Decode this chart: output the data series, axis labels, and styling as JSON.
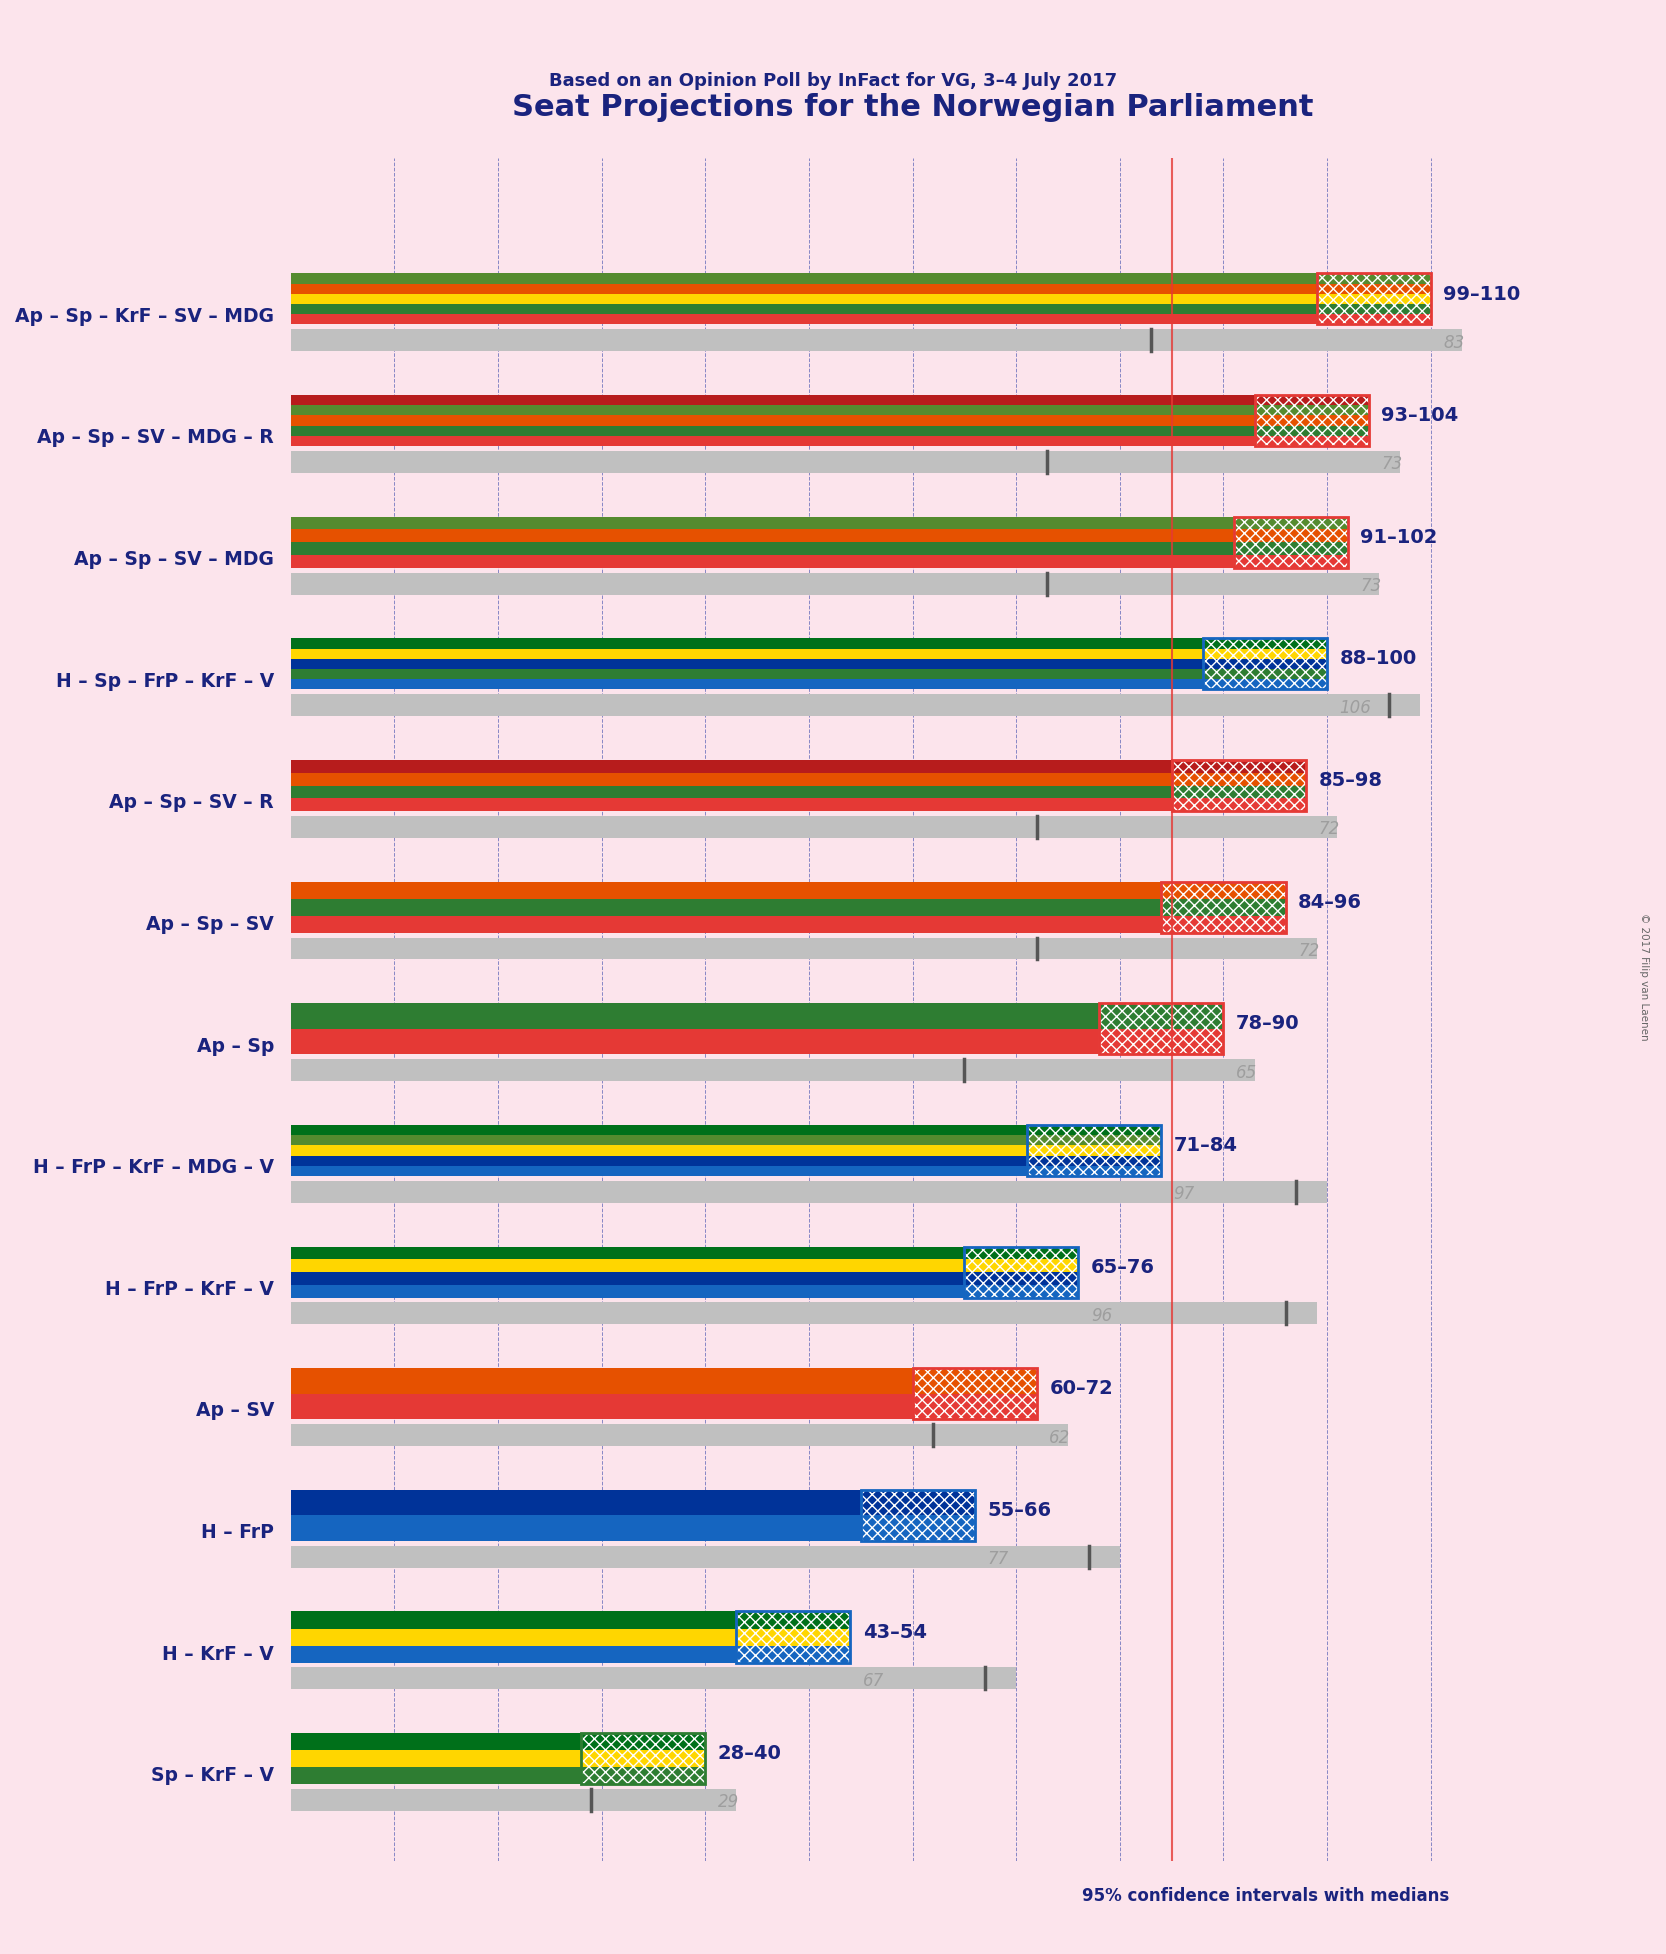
{
  "title": "Seat Projections for the Norwegian Parliament",
  "subtitle": "Based on an Opinion Poll by InFact for VG, 3–4 July 2017",
  "footnote": "95% confidence intervals with medians",
  "copyright": "© 2017 Filip van Laenen",
  "background_color": "#fce4ec",
  "title_color": "#1a237e",
  "subtitle_color": "#1a237e",
  "label_color": "#1a237e",
  "range_color": "#1a237e",
  "median_color": "#9e9e9e",
  "majority_line": 85,
  "x_max": 120,
  "coalitions": [
    {
      "name": "Ap – Sp – KrF – SV – MDG",
      "low": 99,
      "high": 110,
      "median": 83,
      "colors": [
        "#e53935",
        "#2e7d32",
        "#ffd600",
        "#e65100",
        "#558b2f"
      ]
    },
    {
      "name": "Ap – Sp – SV – MDG – R",
      "low": 93,
      "high": 104,
      "median": 73,
      "colors": [
        "#e53935",
        "#2e7d32",
        "#e65100",
        "#558b2f",
        "#b71c1c"
      ]
    },
    {
      "name": "Ap – Sp – SV – MDG",
      "low": 91,
      "high": 102,
      "median": 73,
      "colors": [
        "#e53935",
        "#2e7d32",
        "#e65100",
        "#558b2f"
      ]
    },
    {
      "name": "H – Sp – FrP – KrF – V",
      "low": 88,
      "high": 100,
      "median": 106,
      "colors": [
        "#1565c0",
        "#2e7d32",
        "#003399",
        "#ffd600",
        "#00701a"
      ]
    },
    {
      "name": "Ap – Sp – SV – R",
      "low": 85,
      "high": 98,
      "median": 72,
      "colors": [
        "#e53935",
        "#2e7d32",
        "#e65100",
        "#b71c1c"
      ]
    },
    {
      "name": "Ap – Sp – SV",
      "low": 84,
      "high": 96,
      "median": 72,
      "colors": [
        "#e53935",
        "#2e7d32",
        "#e65100"
      ]
    },
    {
      "name": "Ap – Sp",
      "low": 78,
      "high": 90,
      "median": 65,
      "colors": [
        "#e53935",
        "#2e7d32"
      ]
    },
    {
      "name": "H – FrP – KrF – MDG – V",
      "low": 71,
      "high": 84,
      "median": 97,
      "colors": [
        "#1565c0",
        "#003399",
        "#ffd600",
        "#558b2f",
        "#00701a"
      ]
    },
    {
      "name": "H – FrP – KrF – V",
      "low": 65,
      "high": 76,
      "median": 96,
      "colors": [
        "#1565c0",
        "#003399",
        "#ffd600",
        "#00701a"
      ]
    },
    {
      "name": "Ap – SV",
      "low": 60,
      "high": 72,
      "median": 62,
      "colors": [
        "#e53935",
        "#e65100"
      ]
    },
    {
      "name": "H – FrP",
      "low": 55,
      "high": 66,
      "median": 77,
      "colors": [
        "#1565c0",
        "#003399"
      ]
    },
    {
      "name": "H – KrF – V",
      "low": 43,
      "high": 54,
      "median": 67,
      "colors": [
        "#1565c0",
        "#ffd600",
        "#00701a"
      ]
    },
    {
      "name": "Sp – KrF – V",
      "low": 28,
      "high": 40,
      "median": 29,
      "colors": [
        "#2e7d32",
        "#ffd600",
        "#00701a"
      ]
    }
  ]
}
